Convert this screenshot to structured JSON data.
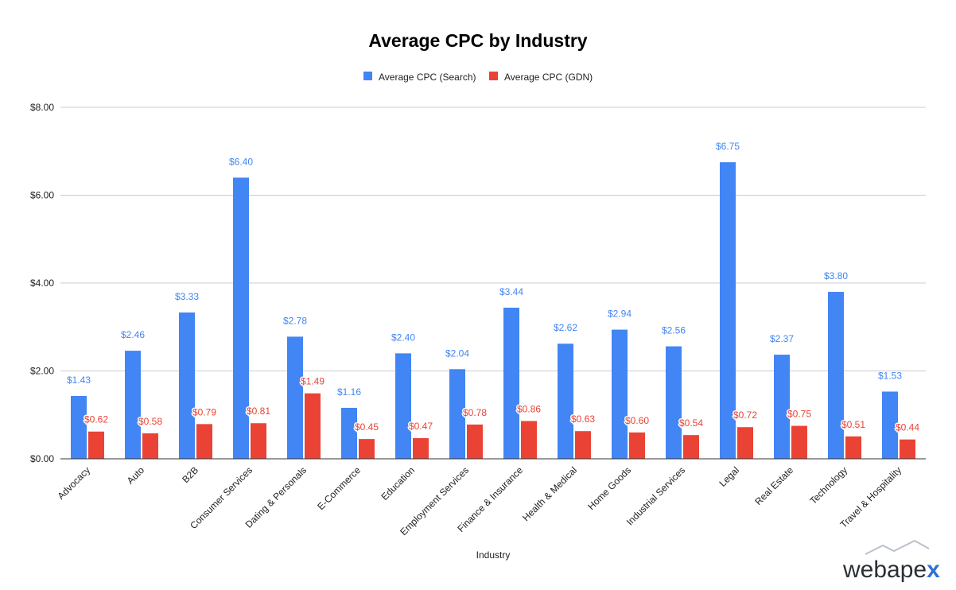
{
  "chart_data": {
    "type": "bar",
    "title": "Average CPC by Industry",
    "xlabel": "Industry",
    "ylabel": "",
    "ylim": [
      0,
      8
    ],
    "yticks": [
      "$0.00",
      "$2.00",
      "$4.00",
      "$6.00",
      "$8.00"
    ],
    "ytick_values": [
      0,
      2,
      4,
      6,
      8
    ],
    "grid": true,
    "legend_position": "top-center",
    "categories": [
      "Advocacy",
      "Auto",
      "B2B",
      "Consumer Services",
      "Dating & Personals",
      "E-Commerce",
      "Education",
      "Employment Services",
      "Finance & Insurance",
      "Health & Medical",
      "Home Goods",
      "Industrial Services",
      "Legal",
      "Real Estate",
      "Technology",
      "Travel & Hospitality"
    ],
    "series": [
      {
        "name": "Average CPC (Search)",
        "color": "#4285f4",
        "values": [
          1.43,
          2.46,
          3.33,
          6.4,
          2.78,
          1.16,
          2.4,
          2.04,
          3.44,
          2.62,
          2.94,
          2.56,
          6.75,
          2.37,
          3.8,
          1.53
        ],
        "labels": [
          "$1.43",
          "$2.46",
          "$3.33",
          "$6.40",
          "$2.78",
          "$1.16",
          "$2.40",
          "$2.04",
          "$3.44",
          "$2.62",
          "$2.94",
          "$2.56",
          "$6.75",
          "$2.37",
          "$3.80",
          "$1.53"
        ]
      },
      {
        "name": "Average CPC (GDN)",
        "color": "#ea4335",
        "values": [
          0.62,
          0.58,
          0.79,
          0.81,
          1.49,
          0.45,
          0.47,
          0.78,
          0.86,
          0.63,
          0.6,
          0.54,
          0.72,
          0.75,
          0.51,
          0.44
        ],
        "labels": [
          "$0.62",
          "$0.58",
          "$0.79",
          "$0.81",
          "$1.49",
          "$0.45",
          "$0.47",
          "$0.78",
          "$0.86",
          "$0.63",
          "$0.60",
          "$0.54",
          "$0.72",
          "$0.75",
          "$0.51",
          "$0.44"
        ]
      }
    ]
  },
  "logo": {
    "text": "webapex",
    "text_color": "#2b2f36",
    "accent_color": "#2f6fd6"
  }
}
